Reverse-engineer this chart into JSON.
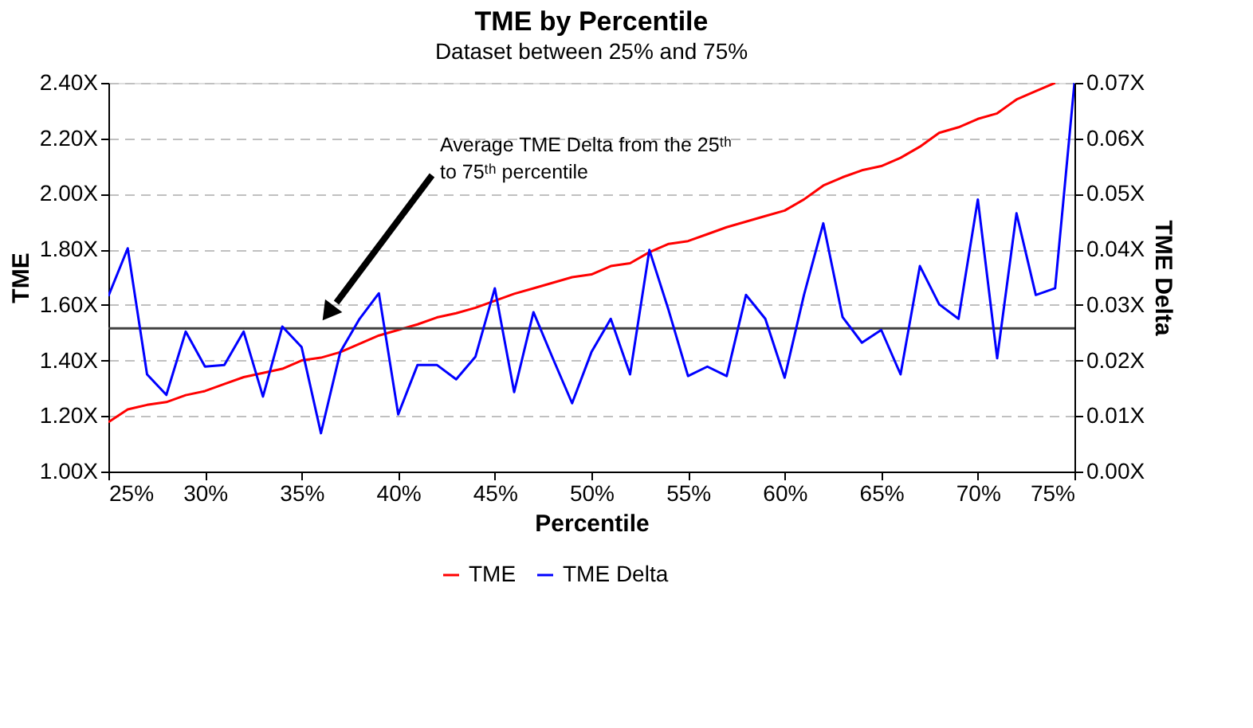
{
  "chart_data": {
    "type": "line",
    "title": "TME by Percentile",
    "subtitle": "Dataset between 25% and 75%",
    "xlabel": "Percentile",
    "ylabel": "TME",
    "y2label": "TME Delta",
    "x": [
      25,
      26,
      27,
      28,
      29,
      30,
      31,
      32,
      33,
      34,
      35,
      36,
      37,
      38,
      39,
      40,
      41,
      42,
      43,
      44,
      45,
      46,
      47,
      48,
      49,
      50,
      51,
      52,
      53,
      54,
      55,
      56,
      57,
      58,
      59,
      60,
      61,
      62,
      63,
      64,
      65,
      66,
      67,
      68,
      69,
      70,
      71,
      72,
      73,
      74,
      75
    ],
    "series": [
      {
        "name": "TME",
        "color": "#ff0000",
        "values": [
          1.178,
          1.224,
          1.24,
          1.25,
          1.275,
          1.29,
          1.315,
          1.34,
          1.355,
          1.37,
          1.4,
          1.41,
          1.43,
          1.46,
          1.49,
          1.51,
          1.53,
          1.555,
          1.57,
          1.59,
          1.615,
          1.64,
          1.66,
          1.68,
          1.7,
          1.71,
          1.74,
          1.75,
          1.79,
          1.82,
          1.83,
          1.855,
          1.88,
          1.9,
          1.92,
          1.94,
          1.98,
          2.03,
          2.06,
          2.085,
          2.1,
          2.13,
          2.17,
          2.22,
          2.24,
          2.27,
          2.29,
          2.34,
          2.37,
          2.4,
          null
        ]
      },
      {
        "name": "TME Delta",
        "color": "#0000ff",
        "axis": "y2",
        "values": [
          0.0316,
          0.0402,
          0.0175,
          0.0138,
          0.0252,
          0.0189,
          0.0192,
          0.0252,
          0.0135,
          0.0261,
          0.0224,
          0.0069,
          0.0215,
          0.0275,
          0.0321,
          0.0103,
          0.0192,
          0.0192,
          0.0166,
          0.0207,
          0.033,
          0.0143,
          0.0287,
          0.0204,
          0.0123,
          0.0215,
          0.0275,
          0.0175,
          0.0399,
          0.029,
          0.0172,
          0.0189,
          0.0172,
          0.0318,
          0.0275,
          0.0169,
          0.0318,
          0.0447,
          0.0278,
          0.0232,
          0.0255,
          0.0175,
          0.037,
          0.0301,
          0.0275,
          0.049,
          0.0204,
          0.0465,
          0.0318,
          0.033,
          0.07
        ]
      }
    ],
    "xlim": [
      25,
      75
    ],
    "xticks": [
      {
        "value": 25,
        "label": "25%"
      },
      {
        "value": 30,
        "label": "30%"
      },
      {
        "value": 35,
        "label": "35%"
      },
      {
        "value": 40,
        "label": "40%"
      },
      {
        "value": 45,
        "label": "45%"
      },
      {
        "value": 50,
        "label": "50%"
      },
      {
        "value": 55,
        "label": "55%"
      },
      {
        "value": 60,
        "label": "60%"
      },
      {
        "value": 65,
        "label": "65%"
      },
      {
        "value": 70,
        "label": "70%"
      },
      {
        "value": 75,
        "label": "75%"
      }
    ],
    "ylim": [
      1.0,
      2.4
    ],
    "yticks": [
      {
        "value": 1.0,
        "label": "1.00X"
      },
      {
        "value": 1.2,
        "label": "1.20X"
      },
      {
        "value": 1.4,
        "label": "1.40X"
      },
      {
        "value": 1.6,
        "label": "1.60X"
      },
      {
        "value": 1.8,
        "label": "1.80X"
      },
      {
        "value": 2.0,
        "label": "2.00X"
      },
      {
        "value": 2.2,
        "label": "2.20X"
      },
      {
        "value": 2.4,
        "label": "2.40X"
      }
    ],
    "y2lim": [
      0,
      0.07
    ],
    "y2ticks": [
      {
        "value": 0,
        "label": "0.00X"
      },
      {
        "value": 0.01,
        "label": "0.01X"
      },
      {
        "value": 0.02,
        "label": "0.02X"
      },
      {
        "value": 0.03,
        "label": "0.03X"
      },
      {
        "value": 0.04,
        "label": "0.04X"
      },
      {
        "value": 0.05,
        "label": "0.05X"
      },
      {
        "value": 0.06,
        "label": "0.06X"
      },
      {
        "value": 0.07,
        "label": "0.07X"
      }
    ],
    "ref_lines": [
      {
        "axis": "y2",
        "value": 0.0258,
        "label": null,
        "color": "#404040"
      }
    ],
    "annotations": [
      "Average TME Delta from the 25ᵗʰ to 75ᵗʰ percentile"
    ],
    "grid": "y",
    "line_style": "solid",
    "marker": "none",
    "legend": "bottom"
  }
}
